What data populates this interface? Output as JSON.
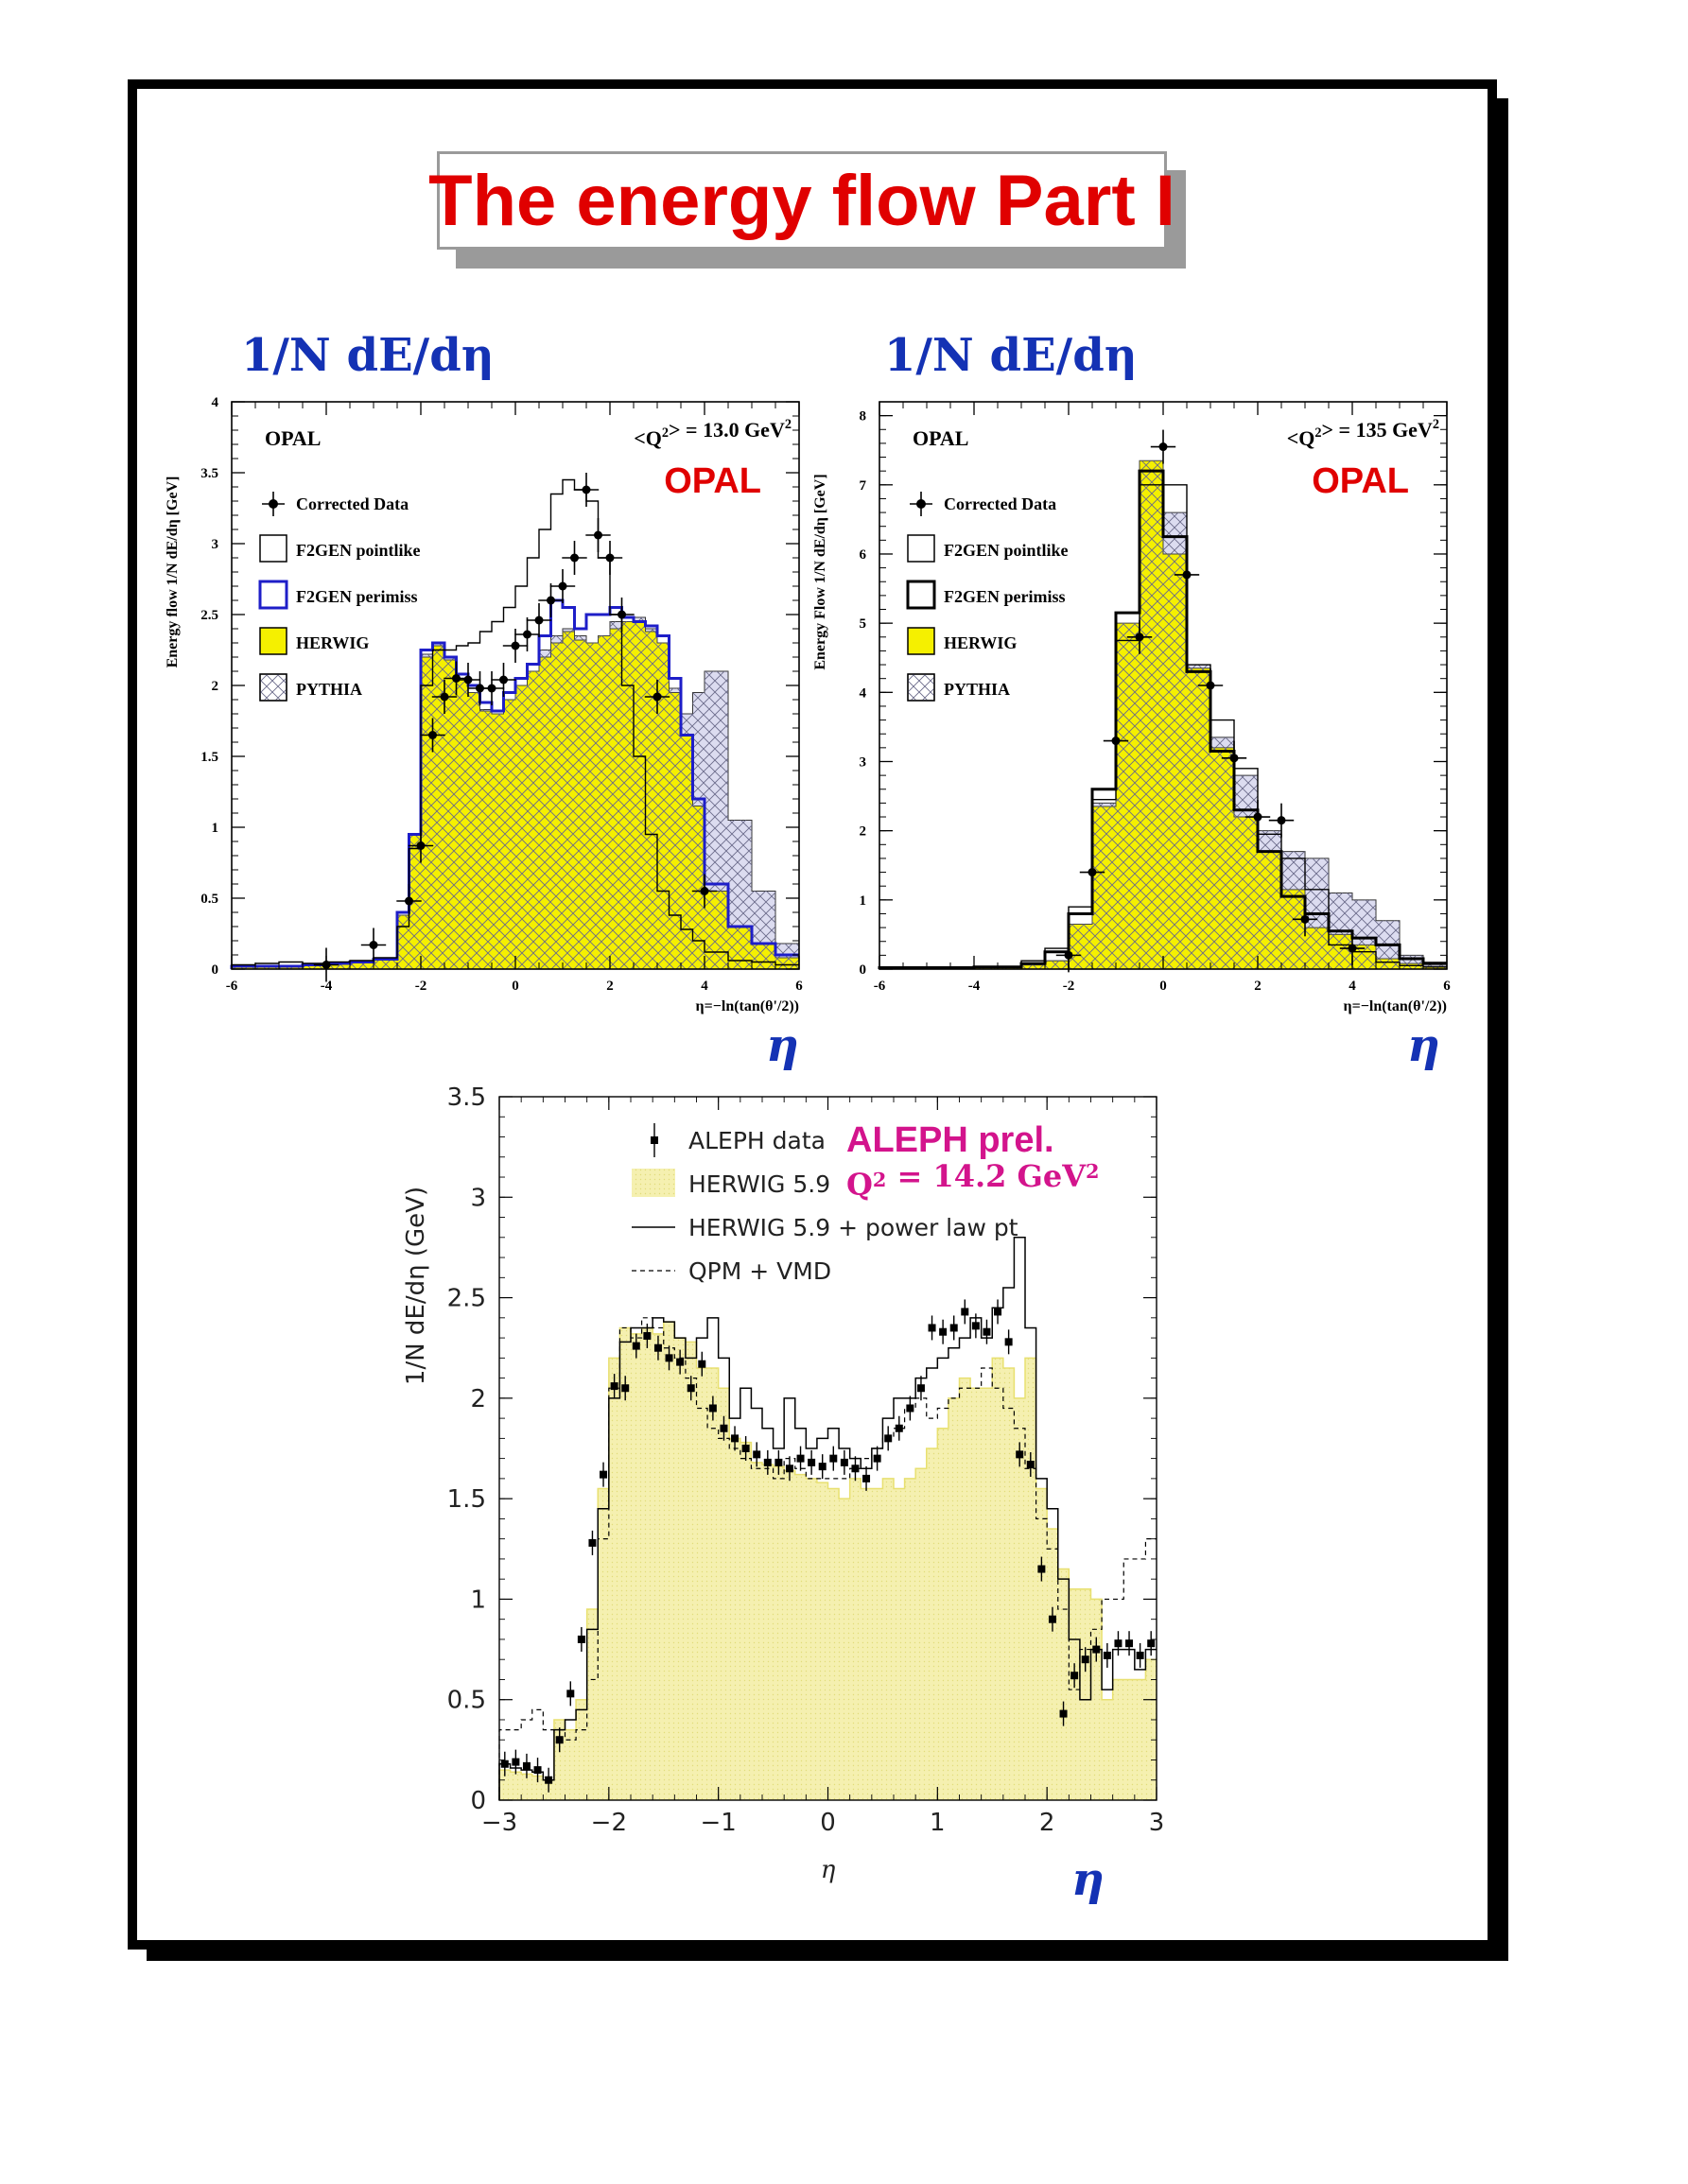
{
  "title": "The energy flow Part I",
  "headings": {
    "left": "1/N dE/dη",
    "right": "1/N dE/dη"
  },
  "eta_labels": [
    "η",
    "η",
    "η"
  ],
  "colors": {
    "title_red": "#e00000",
    "heading_blue": "#1432b4",
    "herwig_yellow": "#f5f000",
    "aleph_yellow": "#f5f0b0",
    "aleph_magenta": "#d3148c",
    "opal_red": "#e00000",
    "perimiss_blue": "#1e1ec8"
  },
  "chart_data": [
    {
      "type": "line",
      "experiment": "OPAL",
      "logo": "OPAL",
      "q2_label": "<Q²> = 13.0 GeV²",
      "xlabel": "η=−ln(tan(θ'/2))",
      "ylabel": "Energy flow   1/N dE/dη  [GeV]",
      "xlim": [
        -6,
        6
      ],
      "ylim": [
        0,
        4
      ],
      "xticks": [
        "-6",
        "-4",
        "-2",
        "0",
        "2",
        "4",
        "6"
      ],
      "yticks": [
        "0",
        "0.5",
        "1",
        "1.5",
        "2",
        "2.5",
        "3",
        "3.5",
        "4"
      ],
      "legend": [
        "Corrected Data",
        "F2GEN pointlike",
        "F2GEN perimiss",
        "HERWIG",
        "PYTHIA"
      ],
      "bin_edges": [
        -6.0,
        -5.5,
        -5.0,
        -4.5,
        -4.0,
        -3.5,
        -3.0,
        -2.5,
        -2.25,
        -2.0,
        -1.75,
        -1.5,
        -1.25,
        -1.0,
        -0.75,
        -0.5,
        -0.25,
        0.0,
        0.25,
        0.5,
        0.75,
        1.0,
        1.25,
        1.5,
        1.75,
        2.0,
        2.25,
        2.5,
        2.75,
        3.0,
        3.25,
        3.5,
        3.75,
        4.0,
        4.5,
        5.0,
        5.5,
        6.0
      ],
      "series": [
        {
          "name": "HERWIG",
          "values": [
            0.02,
            0.02,
            0.02,
            0.03,
            0.04,
            0.05,
            0.07,
            0.38,
            0.95,
            2.2,
            2.28,
            2.18,
            2.05,
            1.95,
            1.82,
            1.8,
            1.9,
            2.0,
            2.1,
            2.2,
            2.3,
            2.38,
            2.32,
            2.3,
            2.35,
            2.4,
            2.45,
            2.45,
            2.38,
            2.3,
            1.95,
            1.65,
            1.15,
            0.55,
            0.3,
            0.18,
            0.08
          ]
        },
        {
          "name": "PYTHIA",
          "values": [
            0.02,
            0.02,
            0.02,
            0.03,
            0.04,
            0.05,
            0.07,
            0.38,
            0.95,
            2.22,
            2.3,
            2.2,
            2.05,
            1.95,
            1.83,
            1.8,
            1.9,
            2.0,
            2.1,
            2.25,
            2.35,
            2.4,
            2.35,
            2.3,
            2.35,
            2.45,
            2.45,
            2.48,
            2.4,
            2.3,
            1.98,
            1.8,
            1.95,
            2.1,
            1.05,
            0.55,
            0.18
          ]
        },
        {
          "name": "F2GEN perimiss",
          "values": [
            0.02,
            0.02,
            0.02,
            0.03,
            0.04,
            0.05,
            0.07,
            0.4,
            0.95,
            2.25,
            2.3,
            2.2,
            2.08,
            2.0,
            1.88,
            1.82,
            1.95,
            2.05,
            2.15,
            2.35,
            2.6,
            2.55,
            2.4,
            2.5,
            2.5,
            2.55,
            2.48,
            2.45,
            2.42,
            2.35,
            2.05,
            1.65,
            1.2,
            0.6,
            0.3,
            0.18,
            0.1
          ]
        },
        {
          "name": "F2GEN pointlike",
          "values": [
            0.03,
            0.04,
            0.05,
            0.04,
            0.05,
            0.06,
            0.08,
            0.3,
            0.85,
            2.0,
            2.25,
            2.25,
            2.28,
            2.3,
            2.38,
            2.45,
            2.55,
            2.7,
            2.9,
            3.1,
            3.35,
            3.45,
            3.38,
            3.3,
            2.9,
            2.5,
            2.0,
            1.5,
            0.95,
            0.55,
            0.38,
            0.28,
            0.2,
            0.12,
            0.06,
            0.05,
            0.03
          ]
        }
      ],
      "data_points": {
        "name": "Corrected Data",
        "x": [
          -4.0,
          -3.0,
          -2.25,
          -2.0,
          -1.75,
          -1.5,
          -1.25,
          -1.0,
          -0.75,
          -0.5,
          -0.25,
          0.0,
          0.25,
          0.5,
          0.75,
          1.0,
          1.25,
          1.5,
          1.75,
          2.0,
          2.25,
          3.0,
          4.0
        ],
        "y": [
          0.03,
          0.17,
          0.48,
          0.87,
          1.65,
          1.92,
          2.05,
          2.04,
          1.98,
          1.98,
          2.04,
          2.28,
          2.36,
          2.46,
          2.6,
          2.7,
          2.9,
          3.38,
          3.06,
          2.9,
          2.5,
          1.92,
          0.55
        ]
      }
    },
    {
      "type": "line",
      "experiment": "OPAL",
      "logo": "OPAL",
      "q2_label": "<Q²> = 135 GeV²",
      "xlabel": "η=−ln(tan(θ'/2))",
      "ylabel": "Energy Flow   1/N dE/dη  [GeV]",
      "xlim": [
        -6,
        6
      ],
      "ylim": [
        0,
        8.2
      ],
      "xticks": [
        "-6",
        "-4",
        "-2",
        "0",
        "2",
        "4",
        "6"
      ],
      "yticks": [
        "0",
        "1",
        "2",
        "3",
        "4",
        "5",
        "6",
        "7",
        "8"
      ],
      "legend": [
        "Corrected Data",
        "F2GEN pointlike",
        "F2GEN perimiss",
        "HERWIG",
        "PYTHIA"
      ],
      "bin_edges": [
        -6.0,
        -5.0,
        -4.0,
        -3.0,
        -2.5,
        -2.0,
        -1.5,
        -1.0,
        -0.5,
        0.0,
        0.5,
        1.0,
        1.5,
        2.0,
        2.5,
        3.0,
        3.5,
        4.0,
        4.5,
        5.0,
        5.5,
        6.0
      ],
      "series": [
        {
          "name": "HERWIG",
          "values": [
            0.02,
            0.02,
            0.03,
            0.06,
            0.12,
            0.65,
            2.35,
            5.0,
            7.35,
            6.0,
            4.35,
            3.2,
            2.2,
            1.7,
            1.15,
            0.6,
            0.5,
            0.35,
            0.15,
            0.08,
            0.04
          ]
        },
        {
          "name": "PYTHIA",
          "values": [
            0.02,
            0.02,
            0.03,
            0.06,
            0.12,
            0.6,
            2.4,
            4.95,
            7.2,
            6.6,
            4.4,
            3.35,
            2.8,
            2.0,
            1.7,
            1.6,
            1.1,
            1.0,
            0.7,
            0.2,
            0.1
          ]
        },
        {
          "name": "F2GEN perimiss",
          "values": [
            0.02,
            0.02,
            0.03,
            0.08,
            0.25,
            0.8,
            2.6,
            5.15,
            7.2,
            6.25,
            4.3,
            3.15,
            2.3,
            1.7,
            1.05,
            0.8,
            0.55,
            0.45,
            0.35,
            0.15,
            0.08
          ]
        },
        {
          "name": "F2GEN pointlike",
          "values": [
            0.02,
            0.02,
            0.03,
            0.12,
            0.3,
            0.9,
            2.45,
            4.75,
            7.0,
            7.0,
            4.4,
            3.6,
            2.9,
            1.95,
            1.6,
            1.15,
            0.35,
            0.25,
            0.1,
            0.05,
            0.03
          ]
        }
      ],
      "data_points": {
        "name": "Corrected Data",
        "x": [
          -2.0,
          -1.5,
          -1.0,
          -0.5,
          0.0,
          0.5,
          1.0,
          1.5,
          2.0,
          2.5,
          3.0,
          4.0
        ],
        "y": [
          0.2,
          1.4,
          3.3,
          4.8,
          7.55,
          5.7,
          4.1,
          3.05,
          2.2,
          2.15,
          0.72,
          0.3
        ]
      }
    },
    {
      "type": "line",
      "experiment": "ALEPH",
      "logo": "ALEPH prel.",
      "q2_label": "Q² = 14.2 GeV²",
      "xlabel": "η",
      "ylabel": "1/N dE/dη (GeV)",
      "xlim": [
        -3,
        3
      ],
      "ylim": [
        0,
        3.5
      ],
      "xticks": [
        "−3",
        "−2",
        "−1",
        "0",
        "1",
        "2",
        "3"
      ],
      "yticks": [
        "0",
        "0.5",
        "1",
        "1.5",
        "2",
        "2.5",
        "3",
        "3.5"
      ],
      "legend": [
        "ALEPH data",
        "HERWIG 5.9",
        "HERWIG 5.9 + power law pt",
        "QPM + VMD"
      ],
      "bin_edges": [
        -3.0,
        -2.9,
        -2.8,
        -2.7,
        -2.6,
        -2.5,
        -2.4,
        -2.3,
        -2.2,
        -2.1,
        -2.0,
        -1.9,
        -1.8,
        -1.7,
        -1.6,
        -1.5,
        -1.4,
        -1.3,
        -1.2,
        -1.1,
        -1.0,
        -0.9,
        -0.8,
        -0.7,
        -0.6,
        -0.5,
        -0.4,
        -0.3,
        -0.2,
        -0.1,
        0.0,
        0.1,
        0.2,
        0.3,
        0.4,
        0.5,
        0.6,
        0.7,
        0.8,
        0.9,
        1.0,
        1.1,
        1.2,
        1.3,
        1.4,
        1.5,
        1.6,
        1.7,
        1.8,
        1.9,
        2.0,
        2.1,
        2.2,
        2.3,
        2.4,
        2.5,
        2.6,
        2.7,
        2.8,
        2.9,
        3.0
      ],
      "series": [
        {
          "name": "HERWIG 5.9",
          "values": [
            0.15,
            0.14,
            0.13,
            0.12,
            0.1,
            0.4,
            0.35,
            0.5,
            0.95,
            1.55,
            2.2,
            2.35,
            2.32,
            2.35,
            2.32,
            2.38,
            2.3,
            2.28,
            2.15,
            2.15,
            2.05,
            1.8,
            1.78,
            1.68,
            1.67,
            1.66,
            1.64,
            1.62,
            1.6,
            1.58,
            1.55,
            1.5,
            1.6,
            1.55,
            1.55,
            1.6,
            1.55,
            1.6,
            1.65,
            1.75,
            1.85,
            2.0,
            2.1,
            2.05,
            2.05,
            2.2,
            2.15,
            2.0,
            2.2,
            1.55,
            1.35,
            1.15,
            1.05,
            1.05,
            1.0,
            0.5,
            0.6,
            0.6,
            0.6,
            0.7
          ]
        },
        {
          "name": "HERWIG 5.9 + power law pt",
          "values": [
            0.18,
            0.16,
            0.15,
            0.14,
            0.1,
            0.35,
            0.4,
            0.45,
            0.85,
            1.45,
            2.0,
            2.28,
            2.35,
            2.35,
            2.4,
            2.38,
            2.3,
            2.2,
            2.3,
            2.4,
            2.2,
            1.9,
            2.05,
            1.95,
            1.85,
            1.75,
            2.0,
            1.85,
            1.75,
            1.8,
            1.85,
            1.75,
            1.7,
            1.65,
            1.75,
            1.9,
            2.0,
            2.0,
            2.1,
            2.15,
            2.2,
            2.25,
            2.3,
            2.4,
            2.3,
            2.45,
            2.55,
            2.8,
            2.35,
            1.6,
            1.45,
            1.1,
            0.8,
            0.5,
            0.75,
            0.55,
            0.75,
            0.75,
            0.65,
            0.75
          ]
        },
        {
          "name": "QPM + VMD",
          "values": [
            0.35,
            0.35,
            0.4,
            0.45,
            0.35,
            0.35,
            0.3,
            0.35,
            0.6,
            1.3,
            2.05,
            2.35,
            2.3,
            2.4,
            2.35,
            2.25,
            2.2,
            2.1,
            1.95,
            1.85,
            1.8,
            1.75,
            1.7,
            1.65,
            1.65,
            1.6,
            1.7,
            1.65,
            1.6,
            1.6,
            1.6,
            1.6,
            1.65,
            1.7,
            1.75,
            1.8,
            1.85,
            1.95,
            2.0,
            1.9,
            1.95,
            2.0,
            2.05,
            2.05,
            2.15,
            2.05,
            1.95,
            1.85,
            1.65,
            1.4,
            1.25,
            0.95,
            0.55,
            0.75,
            0.85,
            1.0,
            1.0,
            1.2,
            1.2,
            1.3
          ]
        }
      ],
      "data_points": {
        "name": "ALEPH data",
        "x": [
          -2.95,
          -2.85,
          -2.75,
          -2.65,
          -2.55,
          -2.45,
          -2.35,
          -2.25,
          -2.15,
          -2.05,
          -1.95,
          -1.85,
          -1.75,
          -1.65,
          -1.55,
          -1.45,
          -1.35,
          -1.25,
          -1.15,
          -1.05,
          -0.95,
          -0.85,
          -0.75,
          -0.65,
          -0.55,
          -0.45,
          -0.35,
          -0.25,
          -0.15,
          -0.05,
          0.05,
          0.15,
          0.25,
          0.35,
          0.45,
          0.55,
          0.65,
          0.75,
          0.85,
          0.95,
          1.05,
          1.15,
          1.25,
          1.35,
          1.45,
          1.55,
          1.65,
          1.75,
          1.85,
          1.95,
          2.05,
          2.15,
          2.25,
          2.35,
          2.45,
          2.55,
          2.65,
          2.75,
          2.85,
          2.95
        ],
        "y": [
          0.18,
          0.19,
          0.17,
          0.15,
          0.1,
          0.3,
          0.53,
          0.8,
          1.28,
          1.62,
          2.06,
          2.05,
          2.26,
          2.31,
          2.25,
          2.2,
          2.18,
          2.05,
          2.17,
          1.95,
          1.85,
          1.8,
          1.75,
          1.72,
          1.68,
          1.68,
          1.65,
          1.7,
          1.68,
          1.66,
          1.7,
          1.68,
          1.65,
          1.6,
          1.7,
          1.8,
          1.85,
          1.95,
          2.05,
          2.35,
          2.33,
          2.35,
          2.43,
          2.36,
          2.33,
          2.43,
          2.28,
          1.72,
          1.67,
          1.15,
          0.9,
          0.43,
          0.62,
          0.7,
          0.75,
          0.72,
          0.78,
          0.78,
          0.72,
          0.78
        ]
      }
    }
  ]
}
